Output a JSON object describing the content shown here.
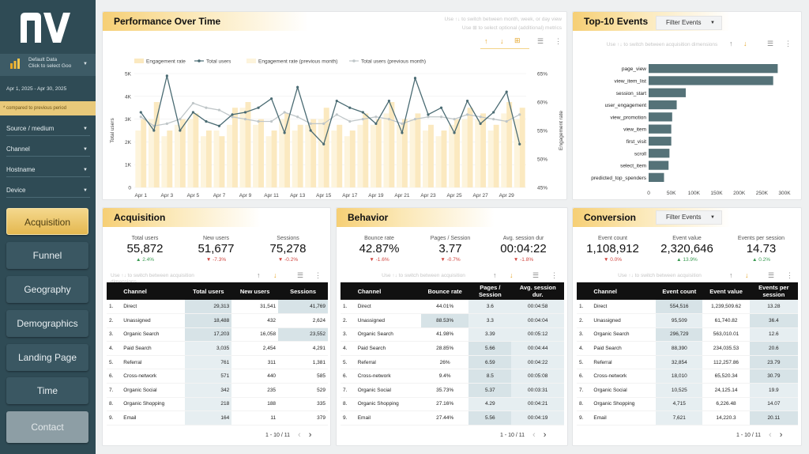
{
  "brand": "AV",
  "sidebar": {
    "data_source": "Default Data",
    "data_source_hint": "Click to select Goo",
    "date_range": "Apr 1, 2025 - Apr 30, 2025",
    "compare_note": "* compared to previous period",
    "filters": [
      "Source / medium",
      "Channel",
      "Hostname",
      "Device"
    ],
    "nav": [
      "Acquisition",
      "Funnel",
      "Geography",
      "Demographics",
      "Landing Page",
      "Time",
      "Contact"
    ]
  },
  "performance": {
    "title": "Performance Over Time",
    "hint1": "Use ↑↓ to switch between month, week, or day view",
    "hint2": "Use ⊞ to select optional (additional) metrics"
  },
  "chart_data": {
    "type": "bar",
    "legend": [
      "Engagement rate",
      "Total users",
      "Engagement rate (previous month)",
      "Total users (previous month)"
    ],
    "xlabels": [
      "Apr 1",
      "Apr 3",
      "Apr 5",
      "Apr 7",
      "Apr 9",
      "Apr 11",
      "Apr 13",
      "Apr 15",
      "Apr 17",
      "Apr 19",
      "Apr 21",
      "Apr 23",
      "Apr 25",
      "Apr 27",
      "Apr 29"
    ],
    "ylabel": "Total users",
    "y2label": "Engagement rate",
    "yticks": [
      "0",
      "1K",
      "2K",
      "3K",
      "4K",
      "5K"
    ],
    "y2ticks": [
      "45%",
      "50%",
      "55%",
      "60%",
      "65%"
    ],
    "ylim": [
      0,
      5000
    ],
    "y2lim": [
      45,
      65
    ],
    "days": 30,
    "engagement_rate": [
      57,
      60,
      55,
      57,
      58,
      55,
      54,
      59,
      60,
      57,
      55,
      58,
      56,
      57,
      59,
      56,
      55,
      58,
      57,
      60,
      57,
      58,
      56,
      55,
      57,
      59,
      58,
      56,
      60,
      59
    ],
    "engagement_rate_prev": [
      55,
      57,
      54,
      56,
      57,
      54,
      55,
      56,
      59,
      56,
      54,
      57,
      55,
      56,
      57,
      55,
      54,
      56,
      56,
      58,
      56,
      57,
      55,
      54,
      56,
      57,
      57,
      55,
      58,
      57
    ],
    "total_users": [
      3300,
      2500,
      4900,
      2500,
      3300,
      2900,
      2700,
      3200,
      3300,
      3500,
      3900,
      2400,
      4400,
      2500,
      1900,
      3800,
      3500,
      3300,
      2800,
      3800,
      2400,
      4800,
      3200,
      3500,
      2400,
      3800,
      2800,
      3300,
      4200,
      1900
    ],
    "total_users_prev": [
      3100,
      2700,
      2800,
      3000,
      3700,
      3500,
      3400,
      3100,
      3000,
      2900,
      2900,
      3300,
      3100,
      2800,
      2800,
      3200,
      2900,
      3000,
      3100,
      3000,
      2800,
      3000,
      3100,
      3100,
      3000,
      3200,
      3100,
      3000,
      2900,
      3200
    ]
  },
  "top_events": {
    "title": "Top-10 Events",
    "filter": "Filter Events",
    "hint": "Use ↑↓ to switch between acquisition dimensions",
    "events": [
      "page_view",
      "view_item_list",
      "session_start",
      "user_engagement",
      "view_promotion",
      "view_item",
      "first_visit",
      "scroll",
      "select_item",
      "predicted_top_spenders"
    ],
    "values": [
      285000,
      275000,
      82000,
      62000,
      52000,
      50000,
      50000,
      46000,
      44000,
      34000
    ],
    "xticks": [
      "0",
      "50K",
      "100K",
      "150K",
      "200K",
      "250K",
      "300K"
    ],
    "xlim": [
      0,
      300000
    ]
  },
  "acquisition": {
    "title": "Acquisition",
    "kpis": [
      {
        "label": "Total users",
        "value": "55,872",
        "delta": "▲ 2.4%"
      },
      {
        "label": "New users",
        "value": "51,677",
        "delta": "▼ -7.3%"
      },
      {
        "label": "Sessions",
        "value": "75,278",
        "delta": "▼ -0.2%"
      }
    ],
    "hint": "Use ↑↓ to switch between acquisition dimensions",
    "headers": [
      "Channel",
      "Total users",
      "New users",
      "Sessions"
    ],
    "rows": [
      [
        "1.",
        "Direct",
        "29,313",
        "31,541",
        "41,769"
      ],
      [
        "2.",
        "Unassigned",
        "18,488",
        "432",
        "2,624"
      ],
      [
        "3.",
        "Organic Search",
        "17,203",
        "16,058",
        "23,552"
      ],
      [
        "4.",
        "Paid Search",
        "3,035",
        "2,454",
        "4,291"
      ],
      [
        "5.",
        "Referral",
        "761",
        "311",
        "1,381"
      ],
      [
        "6.",
        "Cross-network",
        "571",
        "440",
        "585"
      ],
      [
        "7.",
        "Organic Social",
        "342",
        "235",
        "529"
      ],
      [
        "8.",
        "Organic Shopping",
        "218",
        "188",
        "335"
      ],
      [
        "9.",
        "Email",
        "164",
        "11",
        "379"
      ]
    ],
    "pager": "1 - 10 / 11"
  },
  "behavior": {
    "title": "Behavior",
    "kpis": [
      {
        "label": "Bounce rate",
        "value": "42.87%",
        "delta": "▼ -1.6%"
      },
      {
        "label": "Pages / Session",
        "value": "3.77",
        "delta": "▼ -0.7%"
      },
      {
        "label": "Avg. session dur",
        "value": "00:04:22",
        "delta": "▼ -1.8%"
      }
    ],
    "hint": "Use ↑↓ to switch between acquisition",
    "headers": [
      "Channel",
      "Bounce rate",
      "Pages / Session",
      "Avg. session dur."
    ],
    "rows": [
      [
        "1.",
        "Direct",
        "44.01%",
        "3.6",
        "00:04:58"
      ],
      [
        "2.",
        "Unassigned",
        "88.53%",
        "3.3",
        "00:04:04"
      ],
      [
        "3.",
        "Organic Search",
        "41.98%",
        "3.39",
        "00:05:12"
      ],
      [
        "4.",
        "Paid Search",
        "28.85%",
        "5.66",
        "00:04:44"
      ],
      [
        "5.",
        "Referral",
        "26%",
        "6.59",
        "00:04:22"
      ],
      [
        "6.",
        "Cross-network",
        "9.4%",
        "8.5",
        "00:05:08"
      ],
      [
        "7.",
        "Organic Social",
        "35.73%",
        "5.37",
        "00:03:31"
      ],
      [
        "8.",
        "Organic Shopping",
        "27.16%",
        "4.29",
        "00:04:21"
      ],
      [
        "9.",
        "Email",
        "27.44%",
        "5.56",
        "00:04:19"
      ]
    ],
    "pager": "1 - 10 / 11"
  },
  "conversion": {
    "title": "Conversion",
    "filter": "Filter Events",
    "kpis": [
      {
        "label": "Event count",
        "value": "1,108,912",
        "delta": "▼ 0.0%"
      },
      {
        "label": "Event value",
        "value": "2,320,646",
        "delta": "▲ 13.9%"
      },
      {
        "label": "Events per session",
        "value": "14.73",
        "delta": "▲ 0.2%"
      }
    ],
    "hint": "Use ↑↓ to switch between acquisition",
    "headers": [
      "Channel",
      "Event count",
      "Event value",
      "Events per session"
    ],
    "rows": [
      [
        "1.",
        "Direct",
        "554,516",
        "1,239,509.62",
        "13.28"
      ],
      [
        "2.",
        "Unassigned",
        "95,509",
        "61,740.82",
        "36.4"
      ],
      [
        "3.",
        "Organic Search",
        "296,729",
        "563,010.01",
        "12.6"
      ],
      [
        "4.",
        "Paid Search",
        "88,390",
        "234,035.53",
        "20.6"
      ],
      [
        "5.",
        "Referral",
        "32,854",
        "112,257.86",
        "23.79"
      ],
      [
        "6.",
        "Cross-network",
        "18,010",
        "65,520.34",
        "30.79"
      ],
      [
        "7.",
        "Organic Social",
        "10,525",
        "24,125.14",
        "19.9"
      ],
      [
        "8.",
        "Organic Shopping",
        "4,715",
        "6,226.48",
        "14.07"
      ],
      [
        "9.",
        "Email",
        "7,621",
        "14,220.3",
        "20.11"
      ]
    ],
    "pager": "1 - 10 / 11"
  },
  "colors": {
    "gold": "#f0c25e",
    "bar": "#fbe9c0",
    "bar_prev": "#fdf4dc",
    "line": "#4a6b73",
    "line_prev": "#bfc6c8",
    "event_bar": "#557278",
    "sidebar": "#2f4b55"
  }
}
